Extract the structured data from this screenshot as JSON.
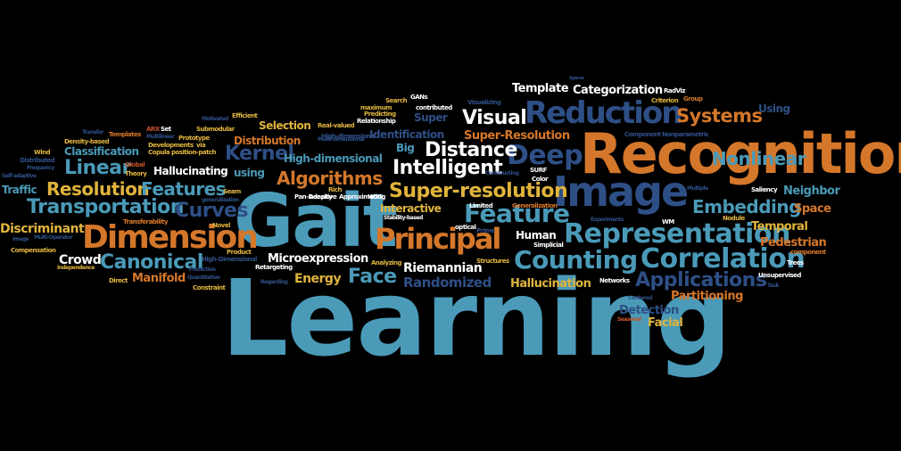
{
  "words": [
    {
      "text": "Learning",
      "color": "teal"
    },
    {
      "text": "Gait",
      "color": "teal"
    },
    {
      "text": "Recognition",
      "color": "orange"
    },
    {
      "text": "Image",
      "color": "navy"
    },
    {
      "text": "Reduction",
      "color": "navy"
    },
    {
      "text": "Dimension",
      "color": "orange"
    },
    {
      "text": "Principal",
      "color": "orange"
    },
    {
      "text": "Representation",
      "color": "teal"
    },
    {
      "text": "Correlation",
      "color": "teal"
    },
    {
      "text": "Counting",
      "color": "teal"
    },
    {
      "text": "Canonical",
      "color": "teal"
    },
    {
      "text": "Feature",
      "color": "teal"
    },
    {
      "text": "Deep",
      "color": "navy"
    },
    {
      "text": "Systems",
      "color": "orange"
    },
    {
      "text": "Applications",
      "color": "navy"
    },
    {
      "text": "Visual",
      "color": "white"
    },
    {
      "text": "Distance",
      "color": "white"
    },
    {
      "text": "Intelligent",
      "color": "white"
    },
    {
      "text": "Super-resolution",
      "color": "gold"
    },
    {
      "text": "Algorithms",
      "color": "orange"
    },
    {
      "text": "Kernel",
      "color": "navy"
    },
    {
      "text": "Linear",
      "color": "teal"
    },
    {
      "text": "Resolution",
      "color": "gold"
    },
    {
      "text": "Features",
      "color": "teal"
    },
    {
      "text": "Transportation",
      "color": "teal"
    },
    {
      "text": "Curves",
      "color": "navy"
    },
    {
      "text": "Embedding",
      "color": "teal"
    },
    {
      "text": "Nonlinear",
      "color": "teal"
    },
    {
      "text": "Face",
      "color": "teal"
    },
    {
      "text": "Randomized",
      "color": "navy"
    },
    {
      "text": "Riemannian",
      "color": "white"
    },
    {
      "text": "Microexpression",
      "color": "white"
    },
    {
      "text": "Crowd",
      "color": "white"
    },
    {
      "text": "Discriminant",
      "color": "gold"
    },
    {
      "text": "Manifold",
      "color": "orange"
    },
    {
      "text": "Energy",
      "color": "gold"
    },
    {
      "text": "Hallucination",
      "color": "gold"
    },
    {
      "text": "Partitioning",
      "color": "orange"
    },
    {
      "text": "Detection",
      "color": "navy"
    },
    {
      "text": "Facial",
      "color": "gold"
    },
    {
      "text": "Pedestrian",
      "color": "orange"
    },
    {
      "text": "Temporal",
      "color": "gold"
    },
    {
      "text": "Space",
      "color": "orange"
    },
    {
      "text": "Neighbor",
      "color": "teal"
    },
    {
      "text": "Template",
      "color": "white"
    },
    {
      "text": "Categorization",
      "color": "white"
    },
    {
      "text": "Super-Resolution",
      "color": "orange"
    },
    {
      "text": "Identification",
      "color": "navy"
    },
    {
      "text": "Selection",
      "color": "gold"
    },
    {
      "text": "Distribution",
      "color": "orange"
    },
    {
      "text": "High-dimensional",
      "color": "teal"
    },
    {
      "text": "Hallucinating",
      "color": "white"
    },
    {
      "text": "Classification",
      "color": "teal"
    },
    {
      "text": "Interactive",
      "color": "gold"
    },
    {
      "text": "Human",
      "color": "white"
    },
    {
      "text": "Traffic",
      "color": "teal"
    },
    {
      "text": "Big",
      "color": "teal"
    },
    {
      "text": "Super",
      "color": "navy"
    },
    {
      "text": "Using",
      "color": "navy"
    },
    {
      "text": "using",
      "color": "teal"
    },
    {
      "text": "Real-valued",
      "color": "gold"
    },
    {
      "text": "High-dimensional",
      "color": "navy"
    },
    {
      "text": "Density-based",
      "color": "gold"
    },
    {
      "text": "Wind",
      "color": "gold"
    },
    {
      "text": "Distributed",
      "color": "navy"
    },
    {
      "text": "Frequency",
      "color": "navy"
    },
    {
      "text": "Self-adaptive",
      "color": "navy"
    },
    {
      "text": "Multi-Operator",
      "color": "navy"
    },
    {
      "text": "Compensation",
      "color": "gold"
    },
    {
      "text": "Independence",
      "color": "gold"
    },
    {
      "text": "image",
      "color": "navy"
    },
    {
      "text": "Transferability",
      "color": "orange"
    },
    {
      "text": "Global",
      "color": "red"
    },
    {
      "text": "Theory",
      "color": "gold"
    },
    {
      "text": "Copula",
      "color": "gold"
    },
    {
      "text": "Developments",
      "color": "gold"
    },
    {
      "text": "via",
      "color": "gold"
    },
    {
      "text": "position-patch",
      "color": "gold"
    },
    {
      "text": "Prototype",
      "color": "gold"
    },
    {
      "text": "Submodular",
      "color": "gold"
    },
    {
      "text": "Efficient",
      "color": "gold"
    },
    {
      "text": "Multilinear",
      "color": "navy"
    },
    {
      "text": "Templates",
      "color": "orange"
    },
    {
      "text": "ARX",
      "color": "red"
    },
    {
      "text": "Set",
      "color": "white"
    },
    {
      "text": "Transfer",
      "color": "navy"
    },
    {
      "text": "Motivated",
      "color": "navy"
    },
    {
      "text": "Adaptive",
      "color": "white"
    },
    {
      "text": "Approximating",
      "color": "white"
    },
    {
      "text": "High-Dimensional",
      "color": "navy"
    },
    {
      "text": "Product",
      "color": "gold"
    },
    {
      "text": "Quantitative",
      "color": "navy"
    },
    {
      "text": "Constraint",
      "color": "gold"
    },
    {
      "text": "Retargeting",
      "color": "white"
    },
    {
      "text": "Regarding",
      "color": "navy"
    },
    {
      "text": "Analyzing",
      "color": "gold"
    },
    {
      "text": "Structures",
      "color": "gold"
    },
    {
      "text": "Networks",
      "color": "white"
    },
    {
      "text": "Centered",
      "color": "navy"
    },
    {
      "text": "Seasonal",
      "color": "red"
    },
    {
      "text": "Unsupervised",
      "color": "white"
    },
    {
      "text": "Trees",
      "color": "white"
    },
    {
      "text": "component",
      "color": "orange"
    },
    {
      "text": "Nodule",
      "color": "gold"
    },
    {
      "text": "Saliency",
      "color": "white"
    },
    {
      "text": "Multiple",
      "color": "navy"
    },
    {
      "text": "WM",
      "color": "white"
    },
    {
      "text": "Experiments",
      "color": "navy"
    },
    {
      "text": "Simplicial",
      "color": "white"
    },
    {
      "text": "Generalization",
      "color": "orange"
    },
    {
      "text": "Prime",
      "color": "navy"
    },
    {
      "text": "optical",
      "color": "white"
    },
    {
      "text": "Limited",
      "color": "white"
    },
    {
      "text": "Stability-based",
      "color": "white"
    },
    {
      "text": "HOG",
      "color": "white"
    },
    {
      "text": "Rich",
      "color": "gold"
    },
    {
      "text": "Pan-Density",
      "color": "white"
    },
    {
      "text": "Seam",
      "color": "gold"
    },
    {
      "text": "generalization",
      "color": "navy"
    },
    {
      "text": "Novel",
      "color": "gold"
    },
    {
      "text": "Prediction",
      "color": "navy"
    },
    {
      "text": "Direct",
      "color": "gold"
    },
    {
      "text": "Multi-dimensional",
      "color": "navy"
    },
    {
      "text": "Relationship",
      "color": "white"
    },
    {
      "text": "maximum",
      "color": "gold"
    },
    {
      "text": "Predicting",
      "color": "gold"
    },
    {
      "text": "contributed",
      "color": "white"
    },
    {
      "text": "Search",
      "color": "gold"
    },
    {
      "text": "GANs",
      "color": "white"
    },
    {
      "text": "Visualizing",
      "color": "navy"
    },
    {
      "text": "Constructing",
      "color": "navy"
    },
    {
      "text": "SURF",
      "color": "white"
    },
    {
      "text": "Color",
      "color": "white"
    },
    {
      "text": "RadViz",
      "color": "white"
    },
    {
      "text": "Criterion",
      "color": "gold"
    },
    {
      "text": "Group",
      "color": "orange"
    },
    {
      "text": "Component",
      "color": "navy"
    },
    {
      "text": "Nonparametric",
      "color": "navy"
    },
    {
      "text": "Sparse",
      "color": "navy"
    },
    {
      "text": "Task",
      "color": "navy"
    }
  ],
  "colors": {
    "white": "#ffffff",
    "teal": "#4a9ab8",
    "orange": "#d4772a",
    "gold": "#e0b43c",
    "navy": "#2e4f86",
    "red": "#c8502a"
  }
}
